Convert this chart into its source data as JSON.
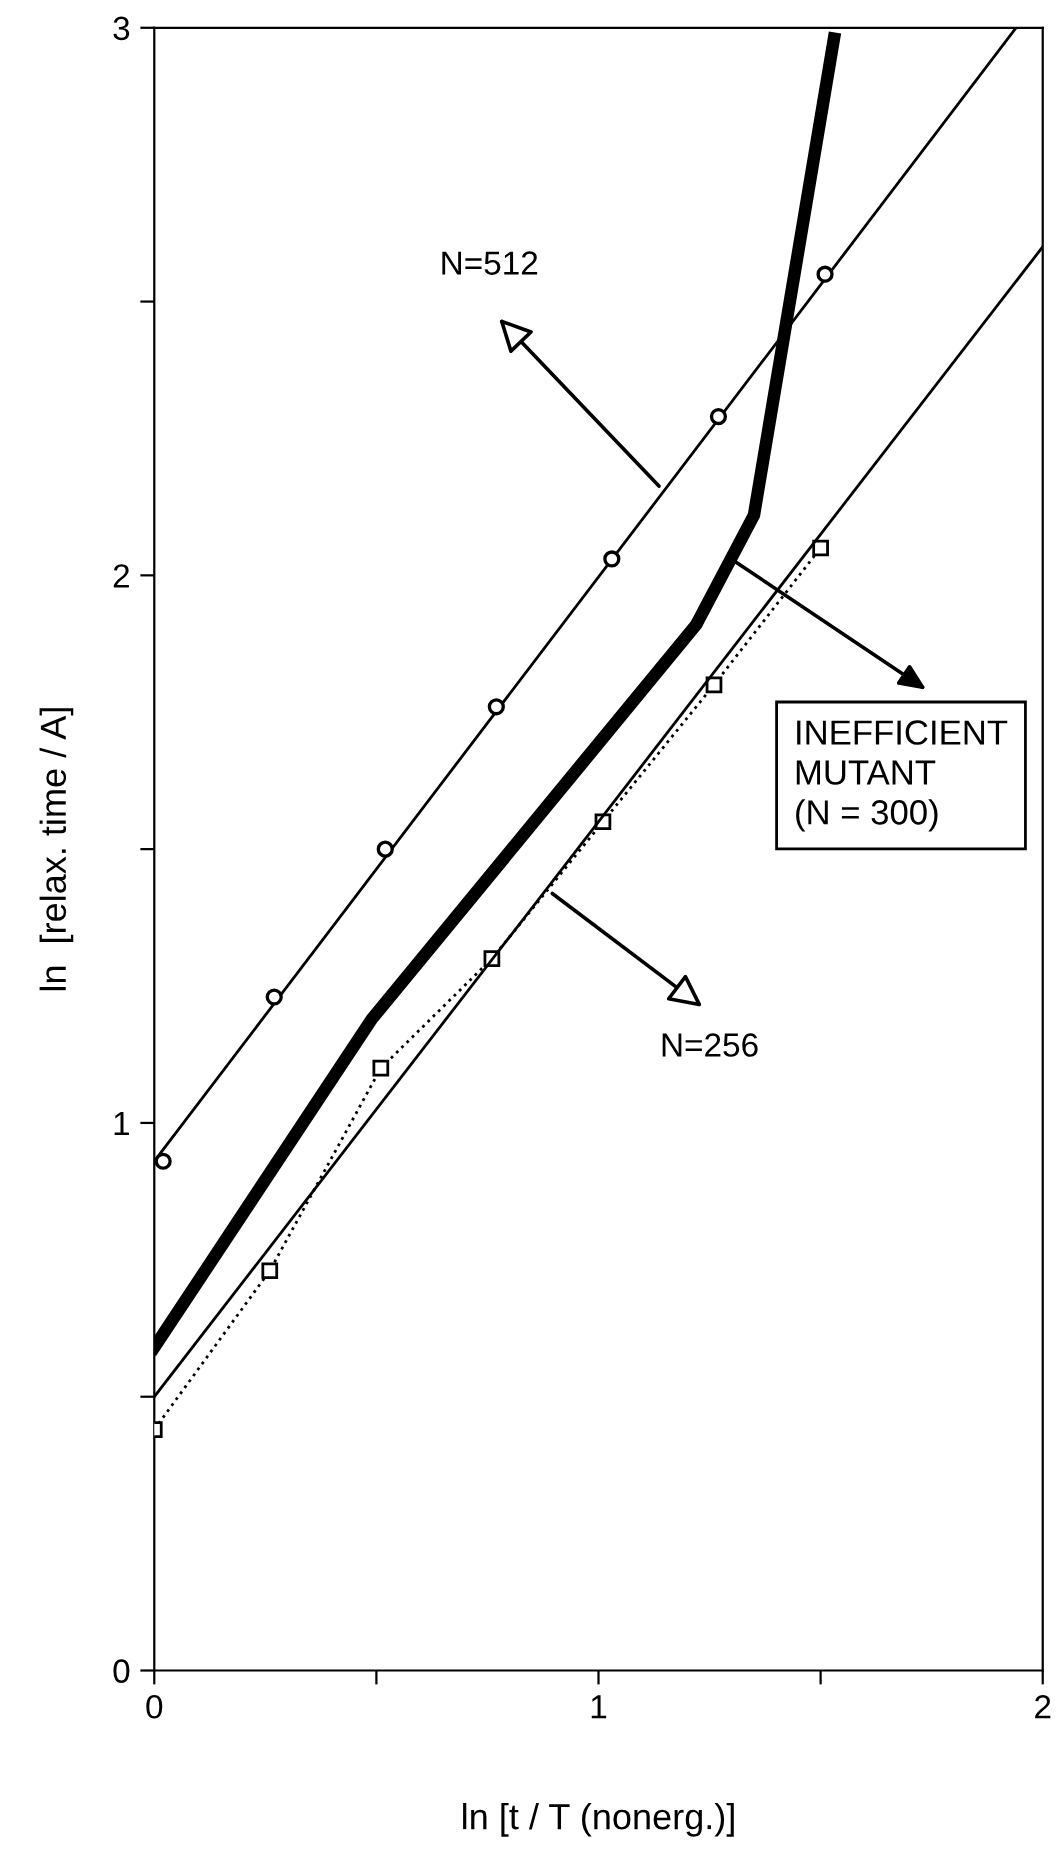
{
  "chart_data": {
    "type": "line",
    "xlabel": "ln [t / T (nonerg.)]",
    "ylabel": "ln  [relax. time / A]",
    "xlim": [
      0,
      2
    ],
    "ylim": [
      0,
      3
    ],
    "xticks": [
      0,
      {
        "value": 0.5,
        "label": null
      },
      1,
      {
        "value": 1.5,
        "label": null
      },
      2
    ],
    "yticks": [
      0,
      {
        "value": 0.5,
        "label": null
      },
      1,
      {
        "value": 1.5,
        "label": null
      },
      2,
      {
        "value": 2.5,
        "label": null
      },
      3
    ],
    "grid": false,
    "legend": false,
    "series": [
      {
        "type": "scatter",
        "marker": "circle",
        "color": "#000000",
        "x": [
          0.02,
          0.27,
          0.52,
          0.77,
          1.03,
          1.27,
          1.51
        ],
        "values": [
          0.93,
          1.23,
          1.5,
          1.76,
          2.03,
          2.29,
          2.55
        ]
      },
      {
        "marker": "none",
        "line_style": "solid",
        "color": "#000000",
        "x": [
          0,
          1.94
        ],
        "values": [
          0.93,
          3.0
        ]
      },
      {
        "marker": "none",
        "line_style": "solid",
        "color": "#000000",
        "x": [
          0,
          0.49,
          1.22,
          1.35,
          1.53
        ],
        "values": [
          0.59,
          1.19,
          1.91,
          2.11,
          2.98
        ]
      },
      {
        "marker": "square",
        "line_style": "dotted",
        "color": "#000000",
        "x": [
          0,
          0.26,
          0.51,
          0.76,
          1.01,
          1.26,
          1.5
        ],
        "values": [
          0.44,
          0.73,
          1.1,
          1.3,
          1.55,
          1.8,
          2.05
        ]
      },
      {
        "marker": "none",
        "line_style": "solid",
        "color": "#000000",
        "x": [
          0,
          2
        ],
        "values": [
          0.5,
          2.6
        ]
      }
    ],
    "annotations": [
      "N=512",
      "INEFFICIENT\nMUTANT\n(N = 300)",
      "N=256"
    ]
  }
}
